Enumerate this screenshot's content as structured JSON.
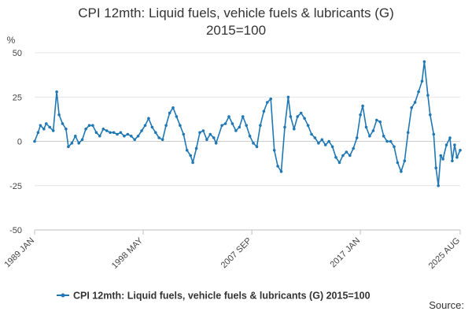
{
  "chart_data": {
    "type": "line",
    "title_lines": [
      "CPI 12mth: Liquid fuels, vehicle fuels & lubricants (G)",
      "2015=100"
    ],
    "y_unit_label": "%",
    "ylim": [
      -50,
      50
    ],
    "yticks": [
      50,
      25,
      0,
      -25,
      -50
    ],
    "xlim": [
      1989.0,
      2025.58
    ],
    "xticks": [
      {
        "label": "1989 JAN",
        "x": 1989.0
      },
      {
        "label": "1998 MAY",
        "x": 1998.33
      },
      {
        "label": "2007 SEP",
        "x": 2007.67
      },
      {
        "label": "2017 JAN",
        "x": 2017.0
      },
      {
        "label": "2025 AUG",
        "x": 2025.58
      }
    ],
    "grid": "horizontal",
    "legend": "bottom",
    "series_color": "#1f77b4",
    "series": [
      {
        "name": "CPI 12mth: Liquid fuels, vehicle fuels & lubricants (G) 2015=100",
        "points": [
          [
            1989.0,
            0
          ],
          [
            1989.3,
            5
          ],
          [
            1989.5,
            9
          ],
          [
            1989.8,
            7
          ],
          [
            1990.0,
            10
          ],
          [
            1990.3,
            8
          ],
          [
            1990.6,
            6
          ],
          [
            1990.9,
            28
          ],
          [
            1991.1,
            15
          ],
          [
            1991.4,
            10
          ],
          [
            1991.7,
            7
          ],
          [
            1991.9,
            -3
          ],
          [
            1992.2,
            -1
          ],
          [
            1992.5,
            3
          ],
          [
            1992.8,
            -1
          ],
          [
            1993.1,
            1
          ],
          [
            1993.4,
            7
          ],
          [
            1993.7,
            9
          ],
          [
            1994.0,
            9
          ],
          [
            1994.3,
            5
          ],
          [
            1994.6,
            3
          ],
          [
            1994.9,
            7
          ],
          [
            1995.2,
            6
          ],
          [
            1995.5,
            5
          ],
          [
            1995.8,
            5
          ],
          [
            1996.1,
            4
          ],
          [
            1996.4,
            5
          ],
          [
            1996.7,
            3
          ],
          [
            1997.0,
            4
          ],
          [
            1997.3,
            3
          ],
          [
            1997.6,
            1
          ],
          [
            1997.9,
            3
          ],
          [
            1998.2,
            6
          ],
          [
            1998.5,
            9
          ],
          [
            1998.8,
            13
          ],
          [
            1999.1,
            8
          ],
          [
            1999.4,
            5
          ],
          [
            1999.7,
            2
          ],
          [
            2000.0,
            1
          ],
          [
            2000.3,
            9
          ],
          [
            2000.6,
            16
          ],
          [
            2000.9,
            19
          ],
          [
            2001.2,
            14
          ],
          [
            2001.5,
            9
          ],
          [
            2001.8,
            4
          ],
          [
            2002.1,
            -5
          ],
          [
            2002.4,
            -8
          ],
          [
            2002.6,
            -12
          ],
          [
            2002.9,
            -4
          ],
          [
            2003.2,
            5
          ],
          [
            2003.5,
            6
          ],
          [
            2003.8,
            1
          ],
          [
            2004.1,
            4
          ],
          [
            2004.4,
            2
          ],
          [
            2004.6,
            -1
          ],
          [
            2005.1,
            9
          ],
          [
            2005.4,
            10
          ],
          [
            2005.7,
            14
          ],
          [
            2006.0,
            10
          ],
          [
            2006.3,
            6
          ],
          [
            2006.6,
            8
          ],
          [
            2006.9,
            14
          ],
          [
            2007.2,
            9
          ],
          [
            2007.5,
            3
          ],
          [
            2007.8,
            -1
          ],
          [
            2008.1,
            -3
          ],
          [
            2008.4,
            9
          ],
          [
            2008.7,
            17
          ],
          [
            2009.0,
            22
          ],
          [
            2009.3,
            24
          ],
          [
            2009.6,
            -5
          ],
          [
            2009.9,
            -14
          ],
          [
            2010.2,
            -17
          ],
          [
            2010.5,
            8
          ],
          [
            2010.8,
            25
          ],
          [
            2011.0,
            14
          ],
          [
            2011.3,
            7
          ],
          [
            2011.6,
            14
          ],
          [
            2011.9,
            16
          ],
          [
            2012.2,
            13
          ],
          [
            2012.5,
            9
          ],
          [
            2012.8,
            4
          ],
          [
            2013.1,
            2
          ],
          [
            2013.4,
            -1
          ],
          [
            2013.7,
            1
          ],
          [
            2014.0,
            -2
          ],
          [
            2014.3,
            0
          ],
          [
            2014.6,
            -3
          ],
          [
            2014.9,
            -9
          ],
          [
            2015.2,
            -12
          ],
          [
            2015.5,
            -8
          ],
          [
            2015.8,
            -6
          ],
          [
            2016.1,
            -8
          ],
          [
            2016.4,
            -4
          ],
          [
            2016.7,
            2
          ],
          [
            2017.0,
            15
          ],
          [
            2017.2,
            20
          ],
          [
            2017.5,
            8
          ],
          [
            2017.8,
            3
          ],
          [
            2018.1,
            6
          ],
          [
            2018.4,
            12
          ],
          [
            2018.7,
            11
          ],
          [
            2019.0,
            3
          ],
          [
            2019.3,
            0
          ],
          [
            2019.6,
            0
          ],
          [
            2019.9,
            -3
          ],
          [
            2020.2,
            -12
          ],
          [
            2020.5,
            -17
          ],
          [
            2020.8,
            -11
          ],
          [
            2021.1,
            5
          ],
          [
            2021.4,
            19
          ],
          [
            2021.7,
            22
          ],
          [
            2022.0,
            28
          ],
          [
            2022.3,
            34
          ],
          [
            2022.5,
            45
          ],
          [
            2022.8,
            26
          ],
          [
            2023.0,
            15
          ],
          [
            2023.3,
            4
          ],
          [
            2023.5,
            -15
          ],
          [
            2023.7,
            -25
          ],
          [
            2023.9,
            -8
          ],
          [
            2024.1,
            -10
          ],
          [
            2024.4,
            -2
          ],
          [
            2024.7,
            2
          ],
          [
            2024.9,
            -11
          ],
          [
            2025.1,
            -2
          ],
          [
            2025.3,
            -9
          ],
          [
            2025.58,
            -5
          ]
        ]
      }
    ]
  },
  "source_label": "Source:"
}
